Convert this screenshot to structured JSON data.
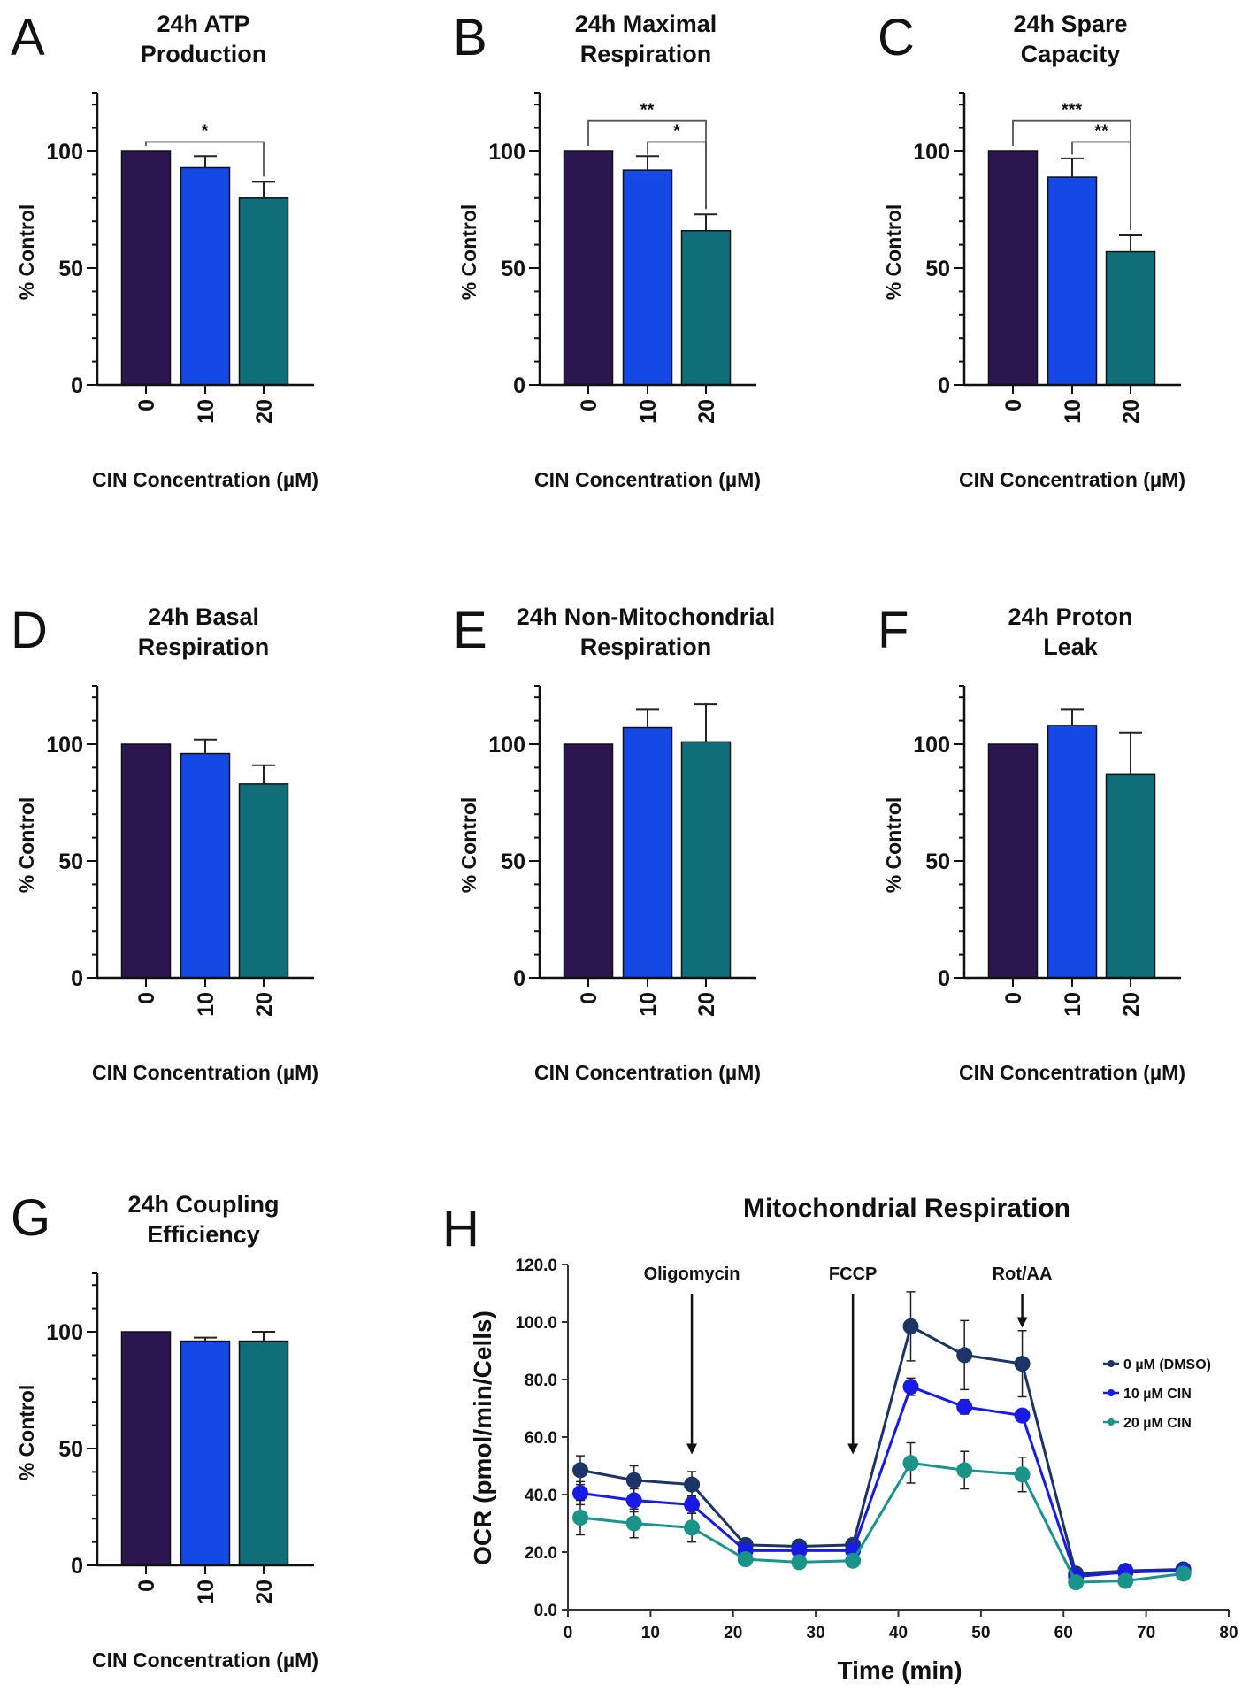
{
  "colors": {
    "c0": "#2b1650",
    "c10": "#1449e6",
    "c20": "#0f6e78"
  },
  "chart_data": [
    {
      "type": "bar",
      "letter": "A",
      "title": [
        "24h ATP",
        "Production"
      ],
      "categories": [
        "0",
        "10",
        "20"
      ],
      "values": [
        100,
        93,
        80
      ],
      "errors": [
        0,
        5,
        7
      ],
      "ylabel": "% Control",
      "xlabel": "CIN Concentration (µM)",
      "ylim": [
        0,
        125
      ],
      "yticks": [
        "0",
        "50",
        "100"
      ],
      "significance": [
        {
          "from": 0,
          "to": 2,
          "label": "*"
        }
      ]
    },
    {
      "type": "bar",
      "letter": "B",
      "title": [
        "24h Maximal",
        "Respiration"
      ],
      "categories": [
        "0",
        "10",
        "20"
      ],
      "values": [
        100,
        92,
        66
      ],
      "errors": [
        0,
        6,
        7
      ],
      "ylabel": "% Control",
      "xlabel": "CIN Concentration (µM)",
      "ylim": [
        0,
        125
      ],
      "yticks": [
        "0",
        "50",
        "100"
      ],
      "significance": [
        {
          "from": 1,
          "to": 2,
          "label": "*"
        },
        {
          "from": 0,
          "to": 2,
          "label": "**"
        }
      ]
    },
    {
      "type": "bar",
      "letter": "C",
      "title": [
        "24h Spare",
        "Capacity"
      ],
      "categories": [
        "0",
        "10",
        "20"
      ],
      "values": [
        100,
        89,
        57
      ],
      "errors": [
        0,
        8,
        7
      ],
      "ylabel": "% Control",
      "xlabel": "CIN Concentration (µM)",
      "ylim": [
        0,
        125
      ],
      "yticks": [
        "0",
        "50",
        "100"
      ],
      "significance": [
        {
          "from": 1,
          "to": 2,
          "label": "**"
        },
        {
          "from": 0,
          "to": 2,
          "label": "***"
        }
      ]
    },
    {
      "type": "bar",
      "letter": "D",
      "title": [
        "24h Basal",
        "Respiration"
      ],
      "categories": [
        "0",
        "10",
        "20"
      ],
      "values": [
        100,
        96,
        83
      ],
      "errors": [
        0,
        6,
        8
      ],
      "ylabel": "% Control",
      "xlabel": "CIN Concentration (µM)",
      "ylim": [
        0,
        125
      ],
      "yticks": [
        "0",
        "50",
        "100"
      ],
      "significance": []
    },
    {
      "type": "bar",
      "letter": "E",
      "title": [
        "24h Non-Mitochondrial",
        "Respiration"
      ],
      "categories": [
        "0",
        "10",
        "20"
      ],
      "values": [
        100,
        107,
        101
      ],
      "errors": [
        0,
        8,
        16
      ],
      "ylabel": "% Control",
      "xlabel": "CIN Concentration (µM)",
      "ylim": [
        0,
        125
      ],
      "yticks": [
        "0",
        "50",
        "100"
      ],
      "significance": []
    },
    {
      "type": "bar",
      "letter": "F",
      "title": [
        "24h Proton",
        "Leak"
      ],
      "categories": [
        "0",
        "10",
        "20"
      ],
      "values": [
        100,
        108,
        87
      ],
      "errors": [
        0,
        7,
        18
      ],
      "ylabel": "% Control",
      "xlabel": "CIN Concentration (µM)",
      "ylim": [
        0,
        125
      ],
      "yticks": [
        "0",
        "50",
        "100"
      ],
      "significance": []
    },
    {
      "type": "bar",
      "letter": "G",
      "title": [
        "24h Coupling",
        "Efficiency"
      ],
      "categories": [
        "0",
        "10",
        "20"
      ],
      "values": [
        100,
        96,
        96
      ],
      "errors": [
        0,
        1.5,
        4
      ],
      "ylabel": "% Control",
      "xlabel": "CIN Concentration (µM)",
      "ylim": [
        0,
        125
      ],
      "yticks": [
        "0",
        "50",
        "100"
      ],
      "significance": []
    },
    {
      "type": "line",
      "letter": "H",
      "title": "Mitochondrial Respiration",
      "xlabel": "Time (min)",
      "ylabel": "OCR (pmol/min/Cells)",
      "xlim": [
        0,
        80
      ],
      "ylim": [
        0,
        120
      ],
      "xticks": [
        "0",
        "10",
        "20",
        "30",
        "40",
        "50",
        "60",
        "70",
        "80"
      ],
      "yticks": [
        "0.0",
        "20.0",
        "40.0",
        "60.0",
        "80.0",
        "100.0",
        "120.0"
      ],
      "x": [
        1.5,
        8,
        15,
        21.5,
        28,
        34.5,
        41.5,
        48,
        55,
        61.5,
        67.5,
        74.5
      ],
      "series": [
        {
          "name": "0 µM (DMSO)",
          "color": "#1c3566",
          "values": [
            48.5,
            45,
            43.5,
            22.5,
            22,
            22.5,
            98.5,
            88.5,
            85.5,
            12.5,
            13.5,
            14
          ],
          "errors": [
            5,
            5,
            4.5,
            1,
            1,
            1,
            12,
            12,
            11.5,
            1,
            1,
            1
          ]
        },
        {
          "name": "10 µM CIN",
          "color": "#1a1ae6",
          "values": [
            40.5,
            38,
            36.5,
            20.5,
            20.5,
            20.5,
            77.5,
            70.5,
            67.5,
            11.5,
            13,
            13.5
          ],
          "errors": [
            4,
            4,
            3,
            1,
            1,
            1,
            3,
            2.5,
            2,
            1,
            1,
            1
          ]
        },
        {
          "name": "20 µM CIN",
          "color": "#1a9488",
          "values": [
            32,
            30,
            28.5,
            17.5,
            16.5,
            17,
            51,
            48.5,
            47,
            9.5,
            10,
            12.5
          ],
          "errors": [
            6,
            5,
            5,
            2,
            2,
            1,
            7,
            6.5,
            6,
            1,
            1,
            1
          ]
        }
      ],
      "annotations": [
        {
          "label": "Oligomycin",
          "x": 15
        },
        {
          "label": "FCCP",
          "x": 34.5
        },
        {
          "label": "Rot/AA",
          "x": 55
        }
      ],
      "legend": "right"
    }
  ]
}
